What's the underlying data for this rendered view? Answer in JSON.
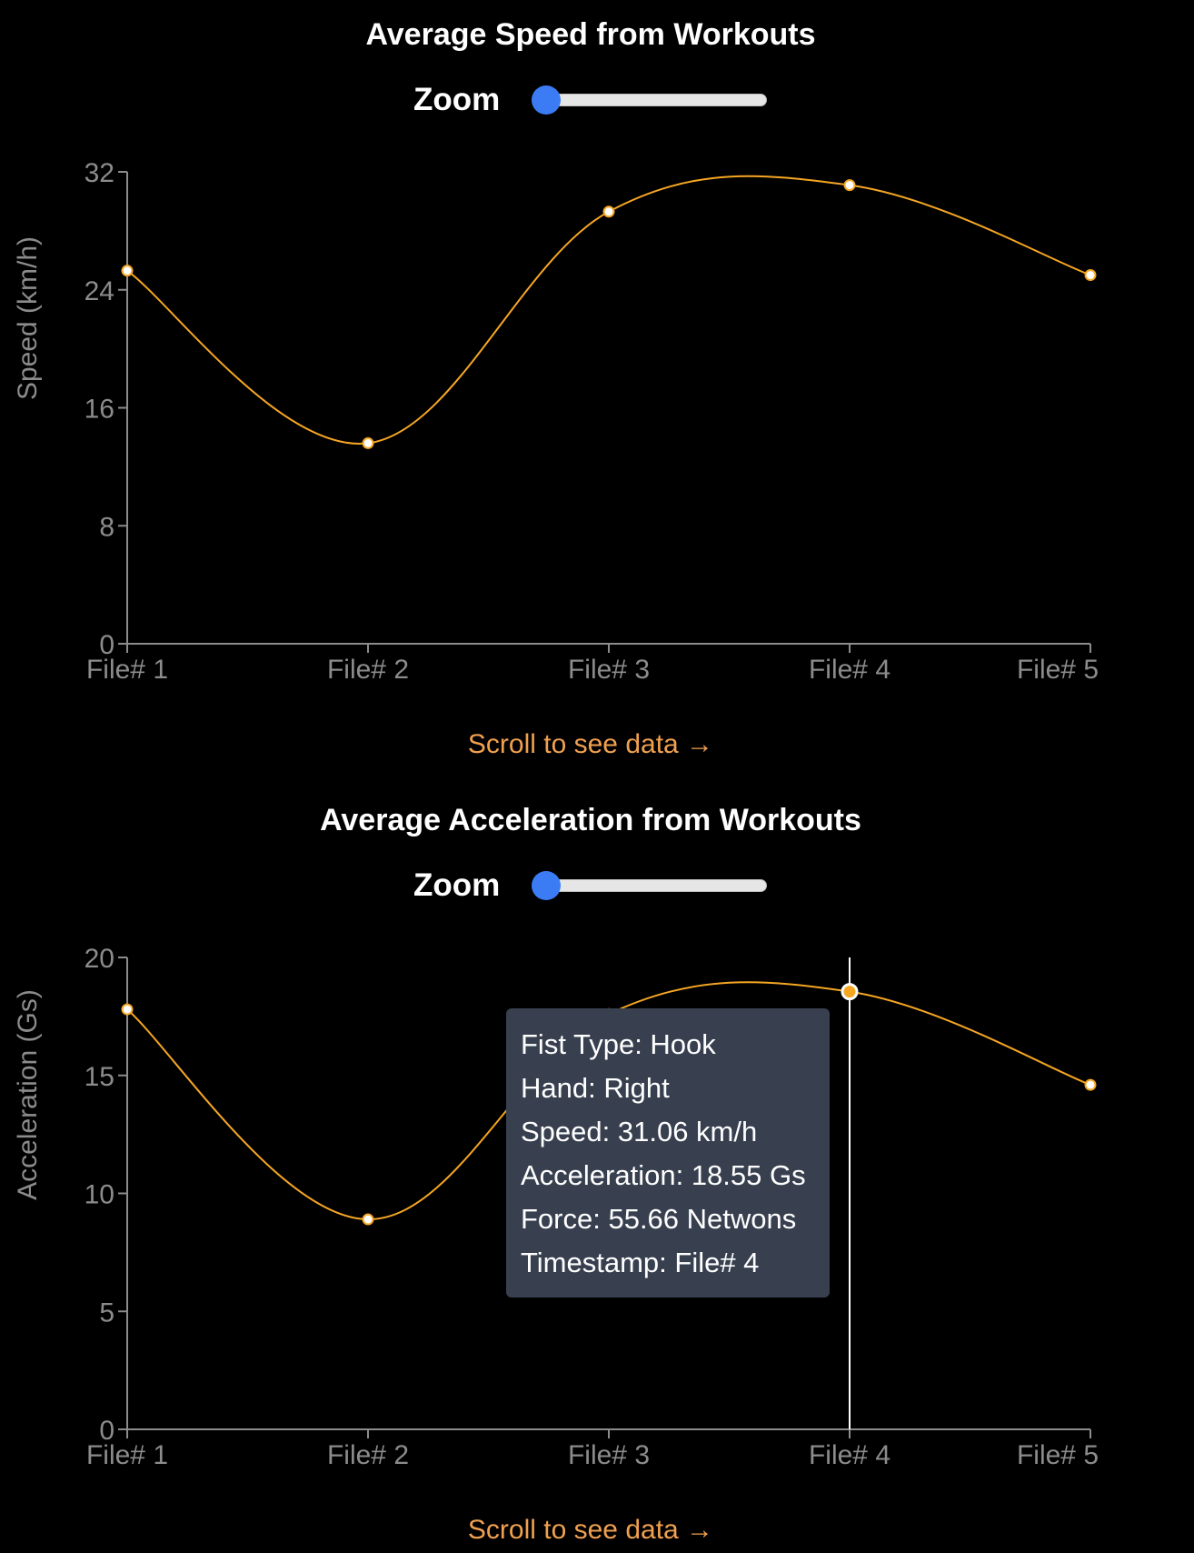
{
  "charts": [
    {
      "title": "Average Speed from Workouts",
      "zoom_label": "Zoom",
      "zoom_value": 0,
      "scroll_hint": "Scroll to see data →",
      "y_ticks": [
        "0",
        "8",
        "16",
        "24",
        "32"
      ],
      "x_ticks": [
        "File# 1",
        "File# 2",
        "File# 3",
        "File# 4",
        "File# 5"
      ]
    },
    {
      "title": "Average Acceleration from Workouts",
      "zoom_label": "Zoom",
      "zoom_value": 0,
      "scroll_hint": "Scroll to see data →",
      "y_ticks": [
        "0",
        "5",
        "10",
        "15",
        "20"
      ],
      "x_ticks": [
        "File# 1",
        "File# 2",
        "File# 3",
        "File# 4",
        "File# 5"
      ]
    }
  ],
  "chart_data": [
    {
      "type": "line",
      "title": "Average Speed from Workouts",
      "xlabel": "",
      "ylabel": "Speed (km/h)",
      "categories": [
        "File# 1",
        "File# 2",
        "File# 3",
        "File# 4",
        "File# 5"
      ],
      "values": [
        25.3,
        13.6,
        29.3,
        31.1,
        25.0
      ],
      "ylim": [
        0,
        32
      ],
      "yticks": [
        0,
        8,
        16,
        24,
        32
      ],
      "grid": false,
      "line_color": "#f5a623"
    },
    {
      "type": "line",
      "title": "Average Acceleration from Workouts",
      "xlabel": "",
      "ylabel": "Acceleration (Gs)",
      "categories": [
        "File# 1",
        "File# 2",
        "File# 3",
        "File# 4",
        "File# 5"
      ],
      "values": [
        17.8,
        8.9,
        17.6,
        18.55,
        14.6
      ],
      "ylim": [
        0,
        20
      ],
      "yticks": [
        0,
        5,
        10,
        15,
        20
      ],
      "grid": false,
      "line_color": "#f5a623",
      "highlighted_index": 3
    }
  ],
  "tooltip": {
    "lines": [
      "Fist Type: Hook",
      "Hand: Right",
      "Speed: 31.06 km/h",
      "Acceleration: 18.55 Gs",
      "Force: 55.66 Netwons",
      "Timestamp: File# 4"
    ]
  },
  "colors": {
    "background": "#000000",
    "line": "#f5a623",
    "axis": "#8c8c8c",
    "slider_thumb": "#3b7cf5",
    "scroll_hint": "#f0a050",
    "tooltip_bg": "#384050"
  }
}
